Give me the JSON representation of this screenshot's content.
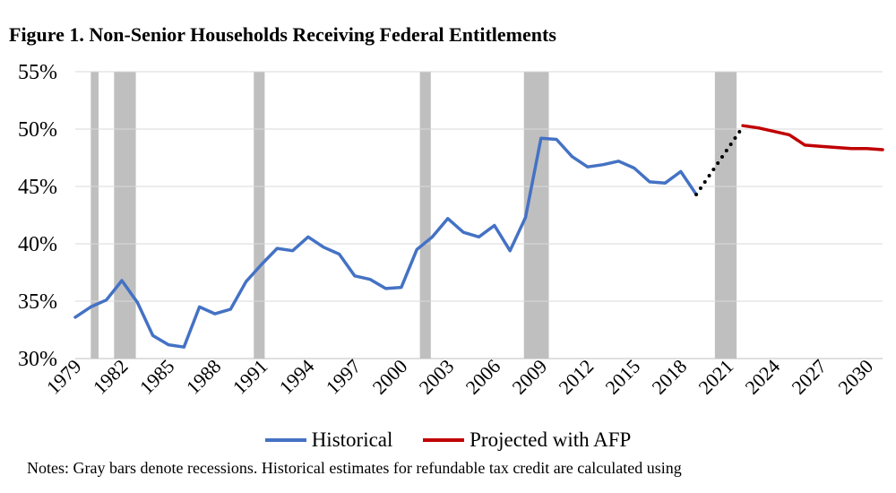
{
  "chart_data": {
    "type": "line",
    "title": "Figure 1. Non-Senior Households Receiving Federal Entitlements",
    "xlabel": "",
    "ylabel": "",
    "ylim": [
      30,
      55
    ],
    "xlim": [
      1979,
      2031
    ],
    "yticks": [
      "30%",
      "35%",
      "40%",
      "45%",
      "50%",
      "55%"
    ],
    "xticks": [
      "1979",
      "1982",
      "1985",
      "1988",
      "1991",
      "1994",
      "1997",
      "2000",
      "2003",
      "2006",
      "2009",
      "2012",
      "2015",
      "2018",
      "2021",
      "2024",
      "2027",
      "2030"
    ],
    "grid": true,
    "legend_placement": "bottom",
    "recessions": [
      [
        1980.0,
        1980.5
      ],
      [
        1981.5,
        1982.9
      ],
      [
        1990.5,
        1991.2
      ],
      [
        2001.2,
        2001.9
      ],
      [
        2007.9,
        2009.5
      ],
      [
        2020.2,
        2021.6
      ]
    ],
    "series": [
      {
        "name": "Historical",
        "color": "#4472C4",
        "style": "solid",
        "x": [
          1979,
          1980,
          1981,
          1982,
          1983,
          1984,
          1985,
          1986,
          1987,
          1988,
          1989,
          1990,
          1991,
          1992,
          1993,
          1994,
          1995,
          1996,
          1997,
          1998,
          1999,
          2000,
          2001,
          2002,
          2003,
          2004,
          2005,
          2006,
          2007,
          2008,
          2009,
          2010,
          2011,
          2012,
          2013,
          2014,
          2015,
          2016,
          2017,
          2018,
          2019
        ],
        "values": [
          33.6,
          34.5,
          35.1,
          36.8,
          34.9,
          32.0,
          31.2,
          31.0,
          34.5,
          33.9,
          34.3,
          36.7,
          38.2,
          39.6,
          39.4,
          40.6,
          39.7,
          39.1,
          37.2,
          36.9,
          36.1,
          36.2,
          39.5,
          40.6,
          42.2,
          41.0,
          40.6,
          41.6,
          39.4,
          42.3,
          49.2,
          49.1,
          47.6,
          46.7,
          46.9,
          47.2,
          46.6,
          45.4,
          45.3,
          46.3,
          44.3
        ]
      },
      {
        "name": "",
        "color": "#000000",
        "style": "dotted",
        "x": [
          2019,
          2022
        ],
        "values": [
          44.3,
          50.2
        ]
      },
      {
        "name": "Projected with AFP",
        "color": "#C00000",
        "style": "solid",
        "x": [
          2022,
          2023,
          2024,
          2025,
          2026,
          2027,
          2028,
          2029,
          2030,
          2031
        ],
        "values": [
          50.3,
          50.1,
          49.8,
          49.5,
          48.6,
          48.5,
          48.4,
          48.3,
          48.3,
          48.2
        ]
      }
    ]
  },
  "note": "Notes: Gray bars denote recessions. Historical estimates for refundable tax credit are calculated using",
  "colors": {
    "recession": "#BFBFBF",
    "grid": "#D9D9D9"
  }
}
